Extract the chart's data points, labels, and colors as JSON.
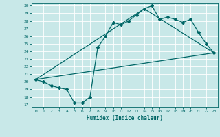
{
  "xlabel": "Humidex (Indice chaleur)",
  "background_color": "#c8e8e8",
  "line_color": "#006666",
  "grid_color": "#ffffff",
  "xlim": [
    -0.5,
    23.5
  ],
  "ylim": [
    16.7,
    30.3
  ],
  "yticks": [
    17,
    18,
    19,
    20,
    21,
    22,
    23,
    24,
    25,
    26,
    27,
    28,
    29,
    30
  ],
  "xticks": [
    0,
    1,
    2,
    3,
    4,
    5,
    6,
    7,
    8,
    9,
    10,
    11,
    12,
    13,
    14,
    15,
    16,
    17,
    18,
    19,
    20,
    21,
    22,
    23
  ],
  "line1_x": [
    0,
    1,
    2,
    3,
    4,
    5,
    6,
    7,
    8,
    9,
    10,
    11,
    12,
    13,
    14,
    15,
    16,
    17,
    18,
    19,
    20,
    21,
    22,
    23
  ],
  "line1_y": [
    20.3,
    20.0,
    19.5,
    19.2,
    19.0,
    17.2,
    17.2,
    18.0,
    24.5,
    26.0,
    27.8,
    27.5,
    28.0,
    28.8,
    29.6,
    30.0,
    28.2,
    28.5,
    28.2,
    27.8,
    28.2,
    26.5,
    25.0,
    23.8
  ],
  "line2_x": [
    0,
    23
  ],
  "line2_y": [
    20.3,
    23.8
  ],
  "line3_x": [
    0,
    14,
    23
  ],
  "line3_y": [
    20.3,
    29.6,
    23.8
  ]
}
